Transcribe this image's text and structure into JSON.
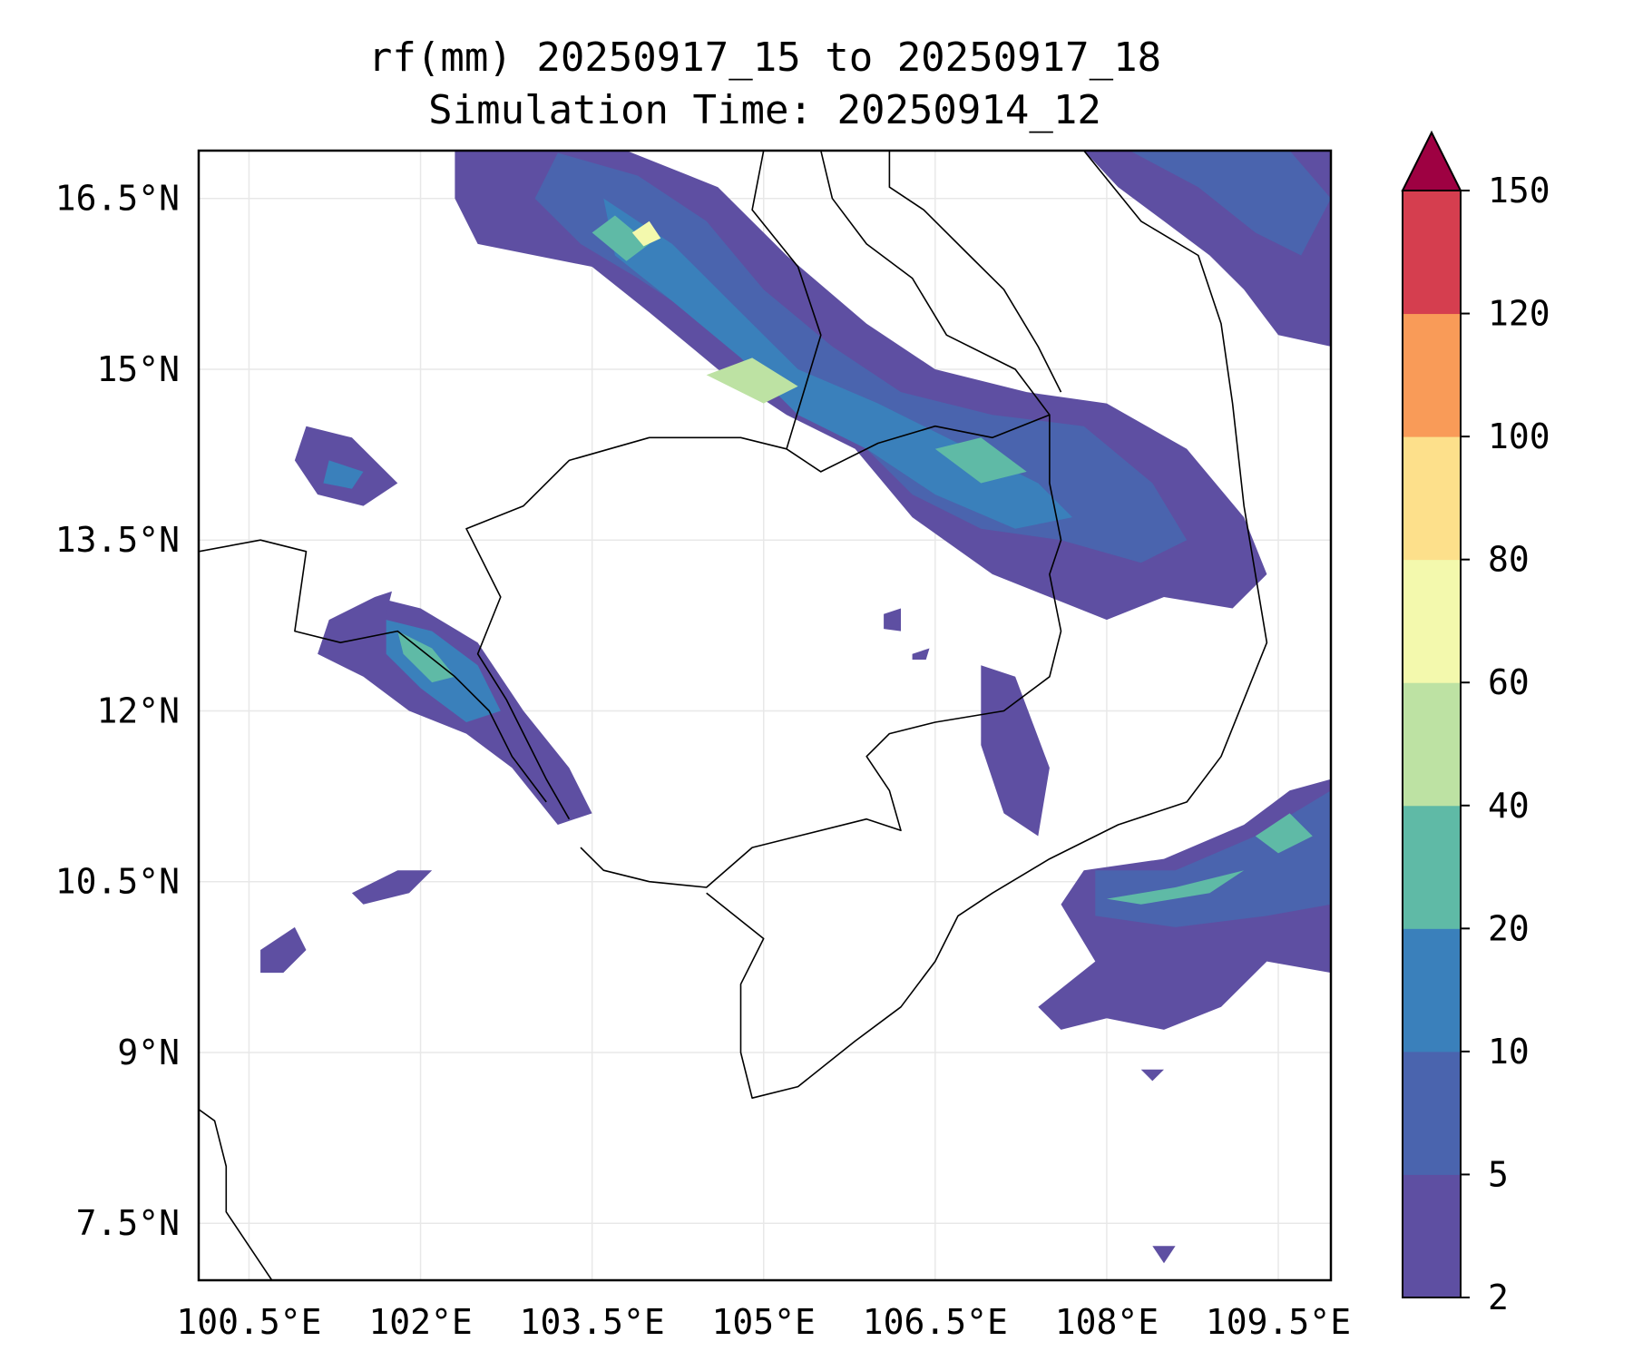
{
  "map": {
    "title_line1": "rf(mm) 20250917_15 to 20250917_18",
    "title_line2": "Simulation Time: 20250914_12",
    "lon_range": [
      100.06,
      109.96
    ],
    "lat_range": [
      7.0,
      16.92
    ],
    "lon_ticks": [
      {
        "value": 100.5,
        "label": "100.5°E"
      },
      {
        "value": 102.0,
        "label": "102°E"
      },
      {
        "value": 103.5,
        "label": "103.5°E"
      },
      {
        "value": 105.0,
        "label": "105°E"
      },
      {
        "value": 106.5,
        "label": "106.5°E"
      },
      {
        "value": 108.0,
        "label": "108°E"
      },
      {
        "value": 109.5,
        "label": "109.5°E"
      }
    ],
    "lat_ticks": [
      {
        "value": 16.5,
        "label": "16.5°N"
      },
      {
        "value": 15.0,
        "label": "15°N"
      },
      {
        "value": 13.5,
        "label": "13.5°N"
      },
      {
        "value": 12.0,
        "label": "12°N"
      },
      {
        "value": 10.5,
        "label": "10.5°N"
      },
      {
        "value": 9.0,
        "label": "9°N"
      },
      {
        "value": 7.5,
        "label": "7.5°N"
      }
    ],
    "grid": true,
    "colors": {
      "grid": "#e8e8e8",
      "border": "#000000",
      "coast": "#000000"
    }
  },
  "colorbar": {
    "extend": "max",
    "extend_color": "#9e0142",
    "levels": [
      {
        "value": 2,
        "label": "2"
      },
      {
        "value": 5,
        "label": "5"
      },
      {
        "value": 10,
        "label": "10"
      },
      {
        "value": 20,
        "label": "20"
      },
      {
        "value": 40,
        "label": "40"
      },
      {
        "value": 60,
        "label": "60"
      },
      {
        "value": 80,
        "label": "80"
      },
      {
        "value": 100,
        "label": "100"
      },
      {
        "value": 120,
        "label": "120"
      },
      {
        "value": 150,
        "label": "150"
      }
    ],
    "bin_colors": [
      "#5e4fa2",
      "#4a64ae",
      "#3a80bb",
      "#5fbaa6",
      "#bde2a3",
      "#f3f9ad",
      "#fde08b",
      "#f99b58",
      "#d53e4f"
    ]
  },
  "rain_areas": [
    {
      "name": "northwest-band",
      "level": 0,
      "pts": [
        [
          102.3,
          16.92
        ],
        [
          103.0,
          16.92
        ],
        [
          103.8,
          16.92
        ],
        [
          104.6,
          16.6
        ],
        [
          105.2,
          16.0
        ],
        [
          105.9,
          15.4
        ],
        [
          106.5,
          15.0
        ],
        [
          107.3,
          14.8
        ],
        [
          108.0,
          14.7
        ],
        [
          108.7,
          14.3
        ],
        [
          109.2,
          13.7
        ],
        [
          109.4,
          13.2
        ],
        [
          109.1,
          12.9
        ],
        [
          108.5,
          13.0
        ],
        [
          108.0,
          12.8
        ],
        [
          107.5,
          13.0
        ],
        [
          107.0,
          13.2
        ],
        [
          106.3,
          13.7
        ],
        [
          105.8,
          14.3
        ],
        [
          105.2,
          14.6
        ],
        [
          104.6,
          15.0
        ],
        [
          104.0,
          15.5
        ],
        [
          103.5,
          15.9
        ],
        [
          103.0,
          16.0
        ],
        [
          102.5,
          16.1
        ],
        [
          102.3,
          16.5
        ]
      ]
    },
    {
      "name": "northwest-band-mid",
      "level": 1,
      "pts": [
        [
          103.2,
          16.9
        ],
        [
          103.9,
          16.7
        ],
        [
          104.5,
          16.3
        ],
        [
          105.0,
          15.7
        ],
        [
          105.6,
          15.2
        ],
        [
          106.2,
          14.8
        ],
        [
          107.0,
          14.6
        ],
        [
          107.8,
          14.5
        ],
        [
          108.4,
          14.0
        ],
        [
          108.7,
          13.5
        ],
        [
          108.3,
          13.3
        ],
        [
          107.6,
          13.5
        ],
        [
          106.9,
          13.6
        ],
        [
          106.3,
          13.9
        ],
        [
          105.7,
          14.5
        ],
        [
          105.1,
          15.0
        ],
        [
          104.5,
          15.4
        ],
        [
          103.9,
          15.8
        ],
        [
          103.4,
          16.1
        ],
        [
          103.0,
          16.5
        ]
      ]
    },
    {
      "name": "northwest-band-core",
      "level": 2,
      "pts": [
        [
          103.6,
          16.5
        ],
        [
          104.2,
          16.1
        ],
        [
          104.7,
          15.6
        ],
        [
          105.3,
          15.0
        ],
        [
          106.0,
          14.7
        ],
        [
          106.8,
          14.3
        ],
        [
          107.4,
          14.0
        ],
        [
          107.7,
          13.7
        ],
        [
          107.2,
          13.6
        ],
        [
          106.5,
          13.9
        ],
        [
          105.9,
          14.3
        ],
        [
          105.3,
          14.6
        ],
        [
          104.8,
          15.1
        ],
        [
          104.2,
          15.6
        ],
        [
          103.7,
          16.0
        ]
      ]
    },
    {
      "name": "core-a",
      "level": 3,
      "pts": [
        [
          103.5,
          16.2
        ],
        [
          103.7,
          16.35
        ],
        [
          104.0,
          16.1
        ],
        [
          103.8,
          15.95
        ]
      ]
    },
    {
      "name": "core-b",
      "level": 4,
      "pts": [
        [
          104.5,
          14.95
        ],
        [
          104.9,
          15.1
        ],
        [
          105.3,
          14.85
        ],
        [
          105.0,
          14.7
        ]
      ]
    },
    {
      "name": "core-c",
      "level": 3,
      "pts": [
        [
          106.5,
          14.3
        ],
        [
          106.9,
          14.4
        ],
        [
          107.3,
          14.1
        ],
        [
          106.9,
          14.0
        ]
      ]
    },
    {
      "name": "core-d",
      "level": 5,
      "pts": [
        [
          103.85,
          16.2
        ],
        [
          104.0,
          16.3
        ],
        [
          104.1,
          16.15
        ],
        [
          103.95,
          16.08
        ]
      ]
    },
    {
      "name": "northeast-corner",
      "level": 0,
      "pts": [
        [
          107.8,
          16.92
        ],
        [
          109.96,
          16.92
        ],
        [
          109.96,
          15.2
        ],
        [
          109.5,
          15.3
        ],
        [
          109.2,
          15.7
        ],
        [
          108.9,
          16.0
        ],
        [
          108.5,
          16.3
        ],
        [
          108.1,
          16.6
        ]
      ]
    },
    {
      "name": "northeast-corner-mid",
      "level": 1,
      "pts": [
        [
          108.2,
          16.92
        ],
        [
          109.6,
          16.92
        ],
        [
          109.96,
          16.5
        ],
        [
          109.7,
          16.0
        ],
        [
          109.3,
          16.2
        ],
        [
          108.8,
          16.6
        ]
      ]
    },
    {
      "name": "west-blob",
      "level": 0,
      "pts": [
        [
          101.0,
          14.5
        ],
        [
          101.4,
          14.4
        ],
        [
          101.8,
          14.0
        ],
        [
          101.5,
          13.8
        ],
        [
          101.1,
          13.9
        ],
        [
          100.9,
          14.2
        ]
      ]
    },
    {
      "name": "west-blob-core",
      "level": 2,
      "pts": [
        [
          101.2,
          14.2
        ],
        [
          101.5,
          14.1
        ],
        [
          101.4,
          13.95
        ],
        [
          101.15,
          14.0
        ]
      ]
    },
    {
      "name": "coast-band",
      "level": 0,
      "pts": [
        [
          101.2,
          12.8
        ],
        [
          101.6,
          13.0
        ],
        [
          102.0,
          12.9
        ],
        [
          102.5,
          12.6
        ],
        [
          102.9,
          12.0
        ],
        [
          103.3,
          11.5
        ],
        [
          103.5,
          11.1
        ],
        [
          103.2,
          11.0
        ],
        [
          102.8,
          11.5
        ],
        [
          102.4,
          11.8
        ],
        [
          101.9,
          12.0
        ],
        [
          101.5,
          12.3
        ],
        [
          101.1,
          12.5
        ]
      ]
    },
    {
      "name": "coast-band-mid",
      "level": 2,
      "pts": [
        [
          101.7,
          12.8
        ],
        [
          102.1,
          12.7
        ],
        [
          102.5,
          12.4
        ],
        [
          102.7,
          12.0
        ],
        [
          102.4,
          11.9
        ],
        [
          102.0,
          12.2
        ],
        [
          101.7,
          12.5
        ]
      ]
    },
    {
      "name": "coast-band-core",
      "level": 3,
      "pts": [
        [
          101.8,
          12.7
        ],
        [
          102.1,
          12.55
        ],
        [
          102.3,
          12.3
        ],
        [
          102.1,
          12.25
        ],
        [
          101.85,
          12.5
        ]
      ]
    },
    {
      "name": "gulf-blob-a",
      "level": 0,
      "pts": [
        [
          101.4,
          10.4
        ],
        [
          101.8,
          10.6
        ],
        [
          102.1,
          10.6
        ],
        [
          101.9,
          10.4
        ],
        [
          101.5,
          10.3
        ]
      ]
    },
    {
      "name": "gulf-blob-b",
      "level": 0,
      "pts": [
        [
          100.6,
          9.9
        ],
        [
          100.9,
          10.1
        ],
        [
          101.0,
          9.9
        ],
        [
          100.8,
          9.7
        ],
        [
          100.6,
          9.7
        ]
      ]
    },
    {
      "name": "east-strip",
      "level": 0,
      "pts": [
        [
          106.9,
          12.4
        ],
        [
          107.2,
          12.3
        ],
        [
          107.5,
          11.5
        ],
        [
          107.4,
          10.9
        ],
        [
          107.1,
          11.1
        ],
        [
          106.9,
          11.7
        ]
      ]
    },
    {
      "name": "southeast-band",
      "level": 0,
      "pts": [
        [
          107.8,
          10.6
        ],
        [
          108.5,
          10.7
        ],
        [
          109.2,
          11.0
        ],
        [
          109.6,
          11.3
        ],
        [
          109.96,
          11.4
        ],
        [
          109.96,
          9.7
        ],
        [
          109.4,
          9.8
        ],
        [
          109.0,
          9.4
        ],
        [
          108.5,
          9.2
        ],
        [
          108.0,
          9.3
        ],
        [
          107.6,
          9.2
        ],
        [
          107.4,
          9.4
        ],
        [
          107.9,
          9.8
        ],
        [
          107.6,
          10.3
        ]
      ]
    },
    {
      "name": "southeast-band-mid",
      "level": 1,
      "pts": [
        [
          107.9,
          10.6
        ],
        [
          108.6,
          10.6
        ],
        [
          109.3,
          10.9
        ],
        [
          109.96,
          11.3
        ],
        [
          109.96,
          10.3
        ],
        [
          109.4,
          10.2
        ],
        [
          108.6,
          10.1
        ],
        [
          107.9,
          10.2
        ]
      ]
    },
    {
      "name": "southeast-band-core",
      "level": 3,
      "pts": [
        [
          108.0,
          10.35
        ],
        [
          108.6,
          10.45
        ],
        [
          109.2,
          10.6
        ],
        [
          108.9,
          10.4
        ],
        [
          108.3,
          10.3
        ]
      ]
    },
    {
      "name": "southeast-band-core-b",
      "level": 3,
      "pts": [
        [
          109.3,
          10.9
        ],
        [
          109.6,
          11.1
        ],
        [
          109.8,
          10.9
        ],
        [
          109.5,
          10.75
        ]
      ]
    },
    {
      "name": "small-1",
      "level": 0,
      "pts": [
        [
          108.4,
          7.3
        ],
        [
          108.6,
          7.3
        ],
        [
          108.5,
          7.15
        ]
      ]
    },
    {
      "name": "small-2",
      "level": 0,
      "pts": [
        [
          108.3,
          8.85
        ],
        [
          108.5,
          8.85
        ],
        [
          108.4,
          8.75
        ]
      ]
    },
    {
      "name": "small-3",
      "level": 0,
      "pts": [
        [
          106.05,
          12.85
        ],
        [
          106.2,
          12.9
        ],
        [
          106.2,
          12.7
        ],
        [
          106.05,
          12.72
        ]
      ]
    },
    {
      "name": "small-4",
      "level": 0,
      "pts": [
        [
          101.6,
          13.0
        ],
        [
          101.75,
          13.05
        ],
        [
          101.7,
          12.85
        ]
      ]
    },
    {
      "name": "small-5",
      "level": 0,
      "pts": [
        [
          106.3,
          12.5
        ],
        [
          106.45,
          12.55
        ],
        [
          106.42,
          12.45
        ],
        [
          106.3,
          12.45
        ]
      ]
    }
  ],
  "boundaries": [
    {
      "name": "cambodia-border",
      "pts": [
        [
          103.3,
          11.05
        ],
        [
          103.1,
          11.4
        ],
        [
          102.95,
          11.7
        ],
        [
          102.75,
          12.1
        ],
        [
          102.5,
          12.5
        ],
        [
          102.7,
          13.0
        ],
        [
          102.4,
          13.6
        ],
        [
          102.9,
          13.8
        ],
        [
          103.3,
          14.2
        ],
        [
          104.0,
          14.4
        ],
        [
          104.8,
          14.4
        ],
        [
          105.2,
          14.3
        ],
        [
          105.5,
          14.1
        ],
        [
          106.0,
          14.35
        ],
        [
          106.5,
          14.5
        ],
        [
          107.0,
          14.4
        ],
        [
          107.5,
          14.6
        ],
        [
          107.5,
          14.0
        ],
        [
          107.6,
          13.5
        ],
        [
          107.5,
          13.2
        ],
        [
          107.6,
          12.7
        ],
        [
          107.5,
          12.3
        ],
        [
          107.1,
          12.0
        ],
        [
          106.5,
          11.9
        ],
        [
          106.1,
          11.8
        ],
        [
          105.9,
          11.6
        ],
        [
          106.1,
          11.3
        ],
        [
          106.2,
          10.95
        ],
        [
          105.9,
          11.05
        ],
        [
          105.3,
          10.9
        ],
        [
          104.9,
          10.8
        ],
        [
          104.5,
          10.45
        ],
        [
          104.0,
          10.5
        ],
        [
          103.6,
          10.6
        ],
        [
          103.4,
          10.8
        ]
      ]
    },
    {
      "name": "vietnam-coast",
      "pts": [
        [
          107.8,
          16.92
        ],
        [
          108.3,
          16.3
        ],
        [
          108.8,
          16.0
        ],
        [
          109.0,
          15.4
        ],
        [
          109.1,
          14.7
        ],
        [
          109.2,
          13.8
        ],
        [
          109.3,
          13.2
        ],
        [
          109.4,
          12.6
        ],
        [
          109.2,
          12.1
        ],
        [
          109.0,
          11.6
        ],
        [
          108.7,
          11.2
        ],
        [
          108.1,
          11.0
        ],
        [
          107.5,
          10.7
        ],
        [
          107.0,
          10.4
        ],
        [
          106.7,
          10.2
        ],
        [
          106.5,
          9.8
        ],
        [
          106.2,
          9.4
        ],
        [
          105.8,
          9.1
        ],
        [
          105.3,
          8.7
        ],
        [
          104.9,
          8.6
        ],
        [
          104.8,
          9.0
        ],
        [
          104.8,
          9.6
        ],
        [
          105.0,
          10.0
        ],
        [
          104.5,
          10.4
        ]
      ]
    },
    {
      "name": "laos-vietnam-border",
      "pts": [
        [
          105.5,
          16.92
        ],
        [
          105.6,
          16.5
        ],
        [
          105.9,
          16.1
        ],
        [
          106.3,
          15.8
        ],
        [
          106.6,
          15.3
        ],
        [
          107.2,
          15.0
        ],
        [
          107.5,
          14.6
        ]
      ]
    },
    {
      "name": "thai-laos-border",
      "pts": [
        [
          105.0,
          16.92
        ],
        [
          104.9,
          16.4
        ],
        [
          105.3,
          15.9
        ],
        [
          105.5,
          15.3
        ],
        [
          105.2,
          14.3
        ]
      ]
    },
    {
      "name": "thai-gulf-coast",
      "pts": [
        [
          100.06,
          13.4
        ],
        [
          100.6,
          13.5
        ],
        [
          101.0,
          13.4
        ],
        [
          100.9,
          12.7
        ],
        [
          101.3,
          12.6
        ],
        [
          101.8,
          12.7
        ],
        [
          102.3,
          12.3
        ],
        [
          102.6,
          12.0
        ],
        [
          102.8,
          11.6
        ],
        [
          103.1,
          11.2
        ]
      ]
    },
    {
      "name": "malay-coast",
      "pts": [
        [
          100.06,
          8.5
        ],
        [
          100.2,
          8.4
        ],
        [
          100.3,
          8.0
        ],
        [
          100.3,
          7.6
        ],
        [
          100.5,
          7.3
        ],
        [
          100.7,
          7.0
        ]
      ]
    },
    {
      "name": "laos-north-border",
      "pts": [
        [
          106.1,
          16.92
        ],
        [
          106.1,
          16.6
        ],
        [
          106.4,
          16.4
        ],
        [
          106.8,
          16.0
        ],
        [
          107.1,
          15.7
        ],
        [
          107.4,
          15.2
        ],
        [
          107.6,
          14.8
        ]
      ]
    }
  ]
}
